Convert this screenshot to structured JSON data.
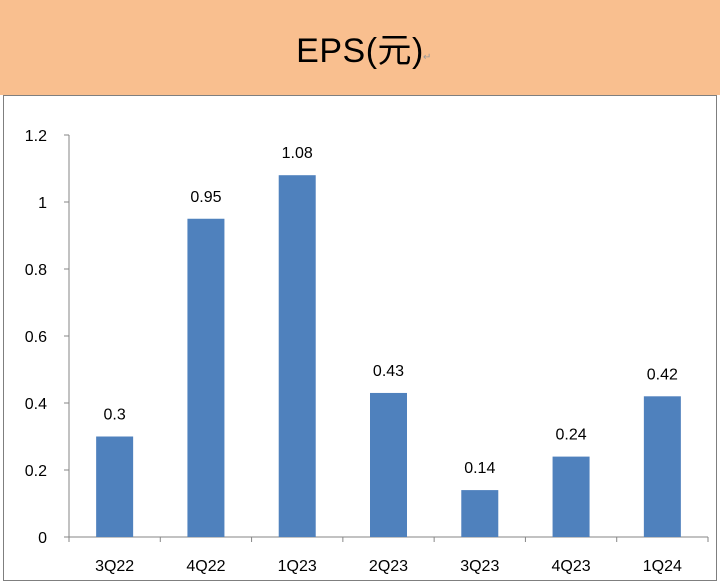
{
  "header": {
    "title": "EPS(元)",
    "bg_color": "#f9bf8f"
  },
  "chart_data": {
    "type": "bar",
    "title": "EPS(元)",
    "categories": [
      "3Q22",
      "4Q22",
      "1Q23",
      "2Q23",
      "3Q23",
      "4Q23",
      "1Q24"
    ],
    "values": [
      0.3,
      0.95,
      1.08,
      0.43,
      0.14,
      0.24,
      0.42
    ],
    "value_labels": [
      "0.3",
      "0.95",
      "1.08",
      "0.43",
      "0.14",
      "0.24",
      "0.42"
    ],
    "ylim": [
      0,
      1.2
    ],
    "yticks": [
      0,
      0.2,
      0.4,
      0.6,
      0.8,
      1,
      1.2
    ],
    "ytick_labels": [
      "0",
      "0.2",
      "0.4",
      "0.6",
      "0.8",
      "1",
      "1.2"
    ],
    "xlabel": "",
    "ylabel": "",
    "grid": false,
    "bar_color": "#4f81bd"
  }
}
